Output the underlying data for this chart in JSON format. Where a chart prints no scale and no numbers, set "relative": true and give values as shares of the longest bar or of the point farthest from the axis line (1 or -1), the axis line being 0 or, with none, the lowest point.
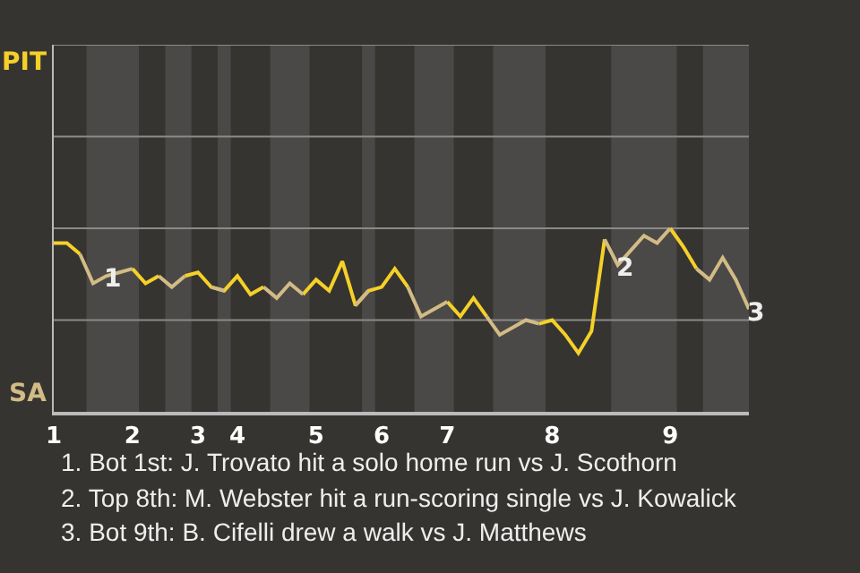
{
  "chart_data": {
    "type": "line",
    "relative": true,
    "categories": [
      "1",
      null,
      null,
      null,
      null,
      null,
      "2",
      null,
      null,
      null,
      null,
      "3",
      null,
      null,
      "4",
      null,
      null,
      null,
      null,
      null,
      "5",
      null,
      null,
      null,
      null,
      "6",
      null,
      null,
      null,
      null,
      "7",
      null,
      null,
      null,
      null,
      null,
      null,
      null,
      "8",
      null,
      null,
      null,
      null,
      null,
      null,
      null,
      null,
      "9",
      null,
      null,
      null,
      null,
      null,
      null
    ],
    "series": [
      {
        "color": "#f5d028",
        "values": [
          0.92,
          0.92,
          0.86,
          null,
          null,
          null,
          0.78,
          0.7,
          0.74,
          null,
          0.74,
          0.76,
          0.68,
          0.66,
          0.74,
          0.64,
          0.68,
          null,
          null,
          0.64,
          0.72,
          0.66,
          0.82,
          0.58,
          0.66,
          0.68,
          0.78,
          0.68,
          null,
          null,
          0.6,
          0.52,
          0.62,
          0.52,
          null,
          null,
          null,
          0.48,
          0.5,
          0.42,
          0.32,
          0.44,
          0.94,
          null,
          null,
          null,
          null,
          1.0,
          0.9,
          0.78,
          null,
          null,
          null,
          null
        ]
      },
      {
        "color": "#d2bb85",
        "values": [
          null,
          null,
          0.86,
          0.7,
          0.74,
          0.76,
          0.78,
          null,
          0.74,
          0.68,
          0.74,
          null,
          0.68,
          0.66,
          null,
          null,
          0.68,
          0.62,
          0.7,
          0.64,
          null,
          null,
          null,
          0.58,
          0.66,
          null,
          null,
          0.68,
          0.52,
          0.56,
          0.6,
          null,
          null,
          0.52,
          0.42,
          0.46,
          0.5,
          0.48,
          null,
          null,
          null,
          null,
          0.94,
          0.8,
          0.88,
          0.96,
          0.92,
          1.0,
          null,
          0.78,
          0.72,
          0.84,
          0.72,
          0.56
        ]
      }
    ],
    "ref_lines": [
      {
        "axis": "y",
        "value": 0.5,
        "color": "#8a8a88"
      },
      {
        "axis": "y",
        "value": 1.0,
        "color": "#8a8a88"
      },
      {
        "axis": "y",
        "value": 1.5,
        "color": "#8a8a88"
      },
      {
        "axis": "y",
        "value": 2.0,
        "color": "#8a8a88"
      }
    ],
    "marker": "none",
    "line_style": "solid",
    "annotations": [
      {
        "text": "1",
        "y": 0.74
      },
      {
        "text": "2",
        "y": 0.8
      },
      {
        "text": "3",
        "y": 0.56
      },
      "PIT",
      "SA",
      "1. Bot 1st: J. Trovato hit a solo home run vs J. Scothorn",
      "2. Top 8th: M. Webster hit a run-scoring single vs J. Kowalick",
      "3. Bot 9th: B. Cifelli drew a walk vs J. Matthews"
    ]
  }
}
